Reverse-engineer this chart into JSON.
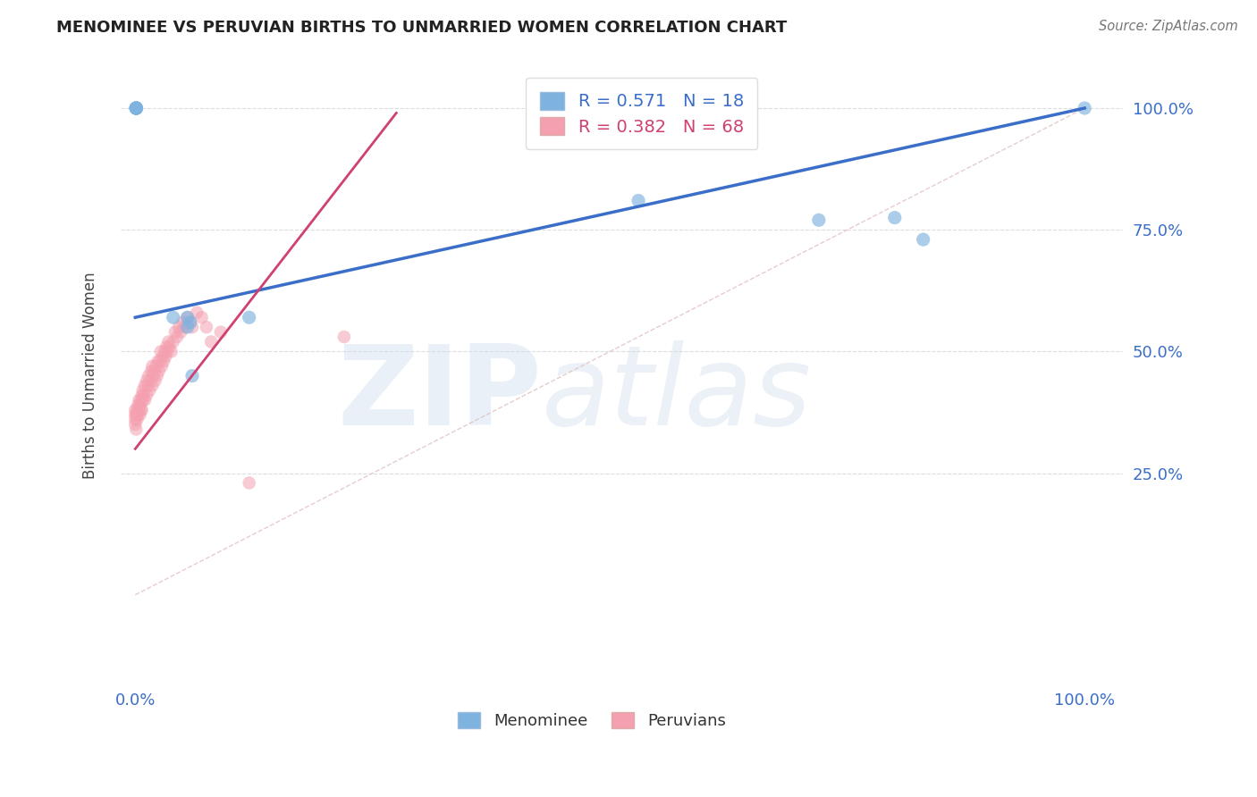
{
  "title": "MENOMINEE VS PERUVIAN BIRTHS TO UNMARRIED WOMEN CORRELATION CHART",
  "source": "Source: ZipAtlas.com",
  "ylabel": "Births to Unmarried Women",
  "xticklabels": [
    "0.0%",
    "",
    "",
    "",
    "100.0%"
  ],
  "xticks": [
    0.0,
    0.25,
    0.5,
    0.75,
    1.0
  ],
  "yticklabels_right": [
    "100.0%",
    "75.0%",
    "50.0%",
    "25.0%"
  ],
  "yticks": [
    1.0,
    0.75,
    0.5,
    0.25
  ],
  "ylim": [
    -0.18,
    1.08
  ],
  "xlim": [
    -0.015,
    1.04
  ],
  "legend_blue_r_val": "0.571",
  "legend_blue_n_val": "18",
  "legend_pink_r_val": "0.382",
  "legend_pink_n_val": "68",
  "legend_label_blue": "Menominee",
  "legend_label_pink": "Peruvians",
  "blue_color": "#7EB3E0",
  "pink_color": "#F4A0B0",
  "blue_line_color": "#3B6EC8",
  "pink_line_color": "#D04070",
  "ref_line_color": "#E0C0C0",
  "grid_color": "#DDDDDD",
  "menominee_x": [
    0.001,
    0.001,
    0.001,
    0.001,
    0.001,
    0.001,
    0.001,
    0.04,
    0.055,
    0.055,
    0.058,
    0.06,
    0.12,
    0.53,
    0.72,
    0.8,
    0.83,
    1.0
  ],
  "menominee_y": [
    1.0,
    1.0,
    1.0,
    1.0,
    1.0,
    1.0,
    1.0,
    0.57,
    0.57,
    0.55,
    0.56,
    0.45,
    0.57,
    0.81,
    0.77,
    0.775,
    0.73,
    1.0
  ],
  "peruvian_x": [
    0.0,
    0.0,
    0.0,
    0.0,
    0.001,
    0.001,
    0.002,
    0.002,
    0.003,
    0.003,
    0.004,
    0.004,
    0.005,
    0.005,
    0.006,
    0.006,
    0.007,
    0.007,
    0.008,
    0.008,
    0.009,
    0.01,
    0.01,
    0.012,
    0.012,
    0.013,
    0.014,
    0.015,
    0.016,
    0.017,
    0.018,
    0.018,
    0.019,
    0.02,
    0.021,
    0.022,
    0.023,
    0.024,
    0.025,
    0.026,
    0.027,
    0.028,
    0.029,
    0.03,
    0.031,
    0.032,
    0.033,
    0.034,
    0.035,
    0.036,
    0.038,
    0.04,
    0.042,
    0.044,
    0.046,
    0.048,
    0.05,
    0.052,
    0.055,
    0.058,
    0.06,
    0.065,
    0.07,
    0.075,
    0.08,
    0.09,
    0.12,
    0.22
  ],
  "peruvian_y": [
    0.37,
    0.38,
    0.36,
    0.35,
    0.34,
    0.37,
    0.36,
    0.38,
    0.37,
    0.39,
    0.38,
    0.4,
    0.37,
    0.39,
    0.38,
    0.4,
    0.41,
    0.38,
    0.4,
    0.42,
    0.41,
    0.43,
    0.4,
    0.44,
    0.41,
    0.43,
    0.45,
    0.42,
    0.44,
    0.46,
    0.43,
    0.47,
    0.45,
    0.46,
    0.44,
    0.47,
    0.45,
    0.48,
    0.46,
    0.48,
    0.5,
    0.47,
    0.49,
    0.48,
    0.5,
    0.49,
    0.51,
    0.5,
    0.52,
    0.51,
    0.5,
    0.52,
    0.54,
    0.53,
    0.55,
    0.54,
    0.56,
    0.55,
    0.57,
    0.56,
    0.55,
    0.58,
    0.57,
    0.55,
    0.52,
    0.54,
    0.23,
    0.53
  ],
  "blue_line_x": [
    0.0,
    1.0
  ],
  "blue_line_y": [
    0.57,
    1.0
  ],
  "pink_line_x": [
    0.0,
    0.275
  ],
  "pink_line_y": [
    0.3,
    0.99
  ],
  "ref_line_x": [
    0.0,
    1.0
  ],
  "ref_line_y": [
    0.0,
    1.0
  ]
}
